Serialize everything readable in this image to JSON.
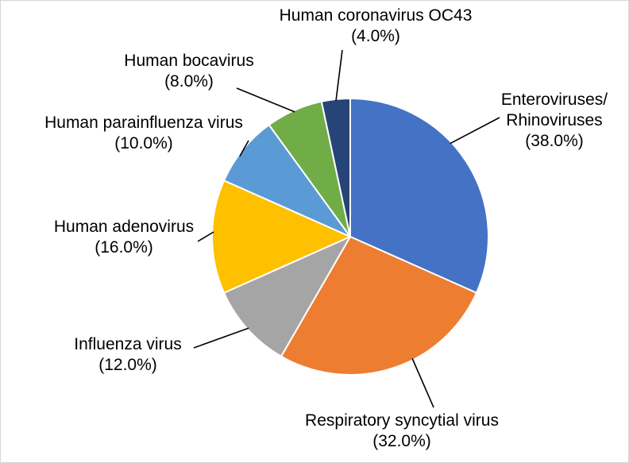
{
  "chart_data": {
    "type": "pie",
    "title": "",
    "direction": "clockwise",
    "start_angle_deg": 0,
    "label_format": "{label} ({value}%)",
    "slices": [
      {
        "label": "Enteroviruses/\nRhinoviruses",
        "value": 38.0,
        "color": "#4472C4"
      },
      {
        "label": "Respiratory syncytial virus",
        "value": 32.0,
        "color": "#ED7D31"
      },
      {
        "label": "Influenza virus",
        "value": 12.0,
        "color": "#A5A5A5"
      },
      {
        "label": "Human adenovirus",
        "value": 16.0,
        "color": "#FFC000"
      },
      {
        "label": "Human parainfluenza virus",
        "value": 10.0,
        "color": "#5B9BD5"
      },
      {
        "label": "Human bocavirus",
        "value": 8.0,
        "color": "#70AD47"
      },
      {
        "label": "Human coronavirus OC43",
        "value": 4.0,
        "color": "#264478"
      }
    ],
    "styling": {
      "slice_border_color": "#FFFFFF",
      "leader_line_color": "#000000",
      "label_text_color": "#000000",
      "background_color": "#FFFFFF"
    }
  }
}
